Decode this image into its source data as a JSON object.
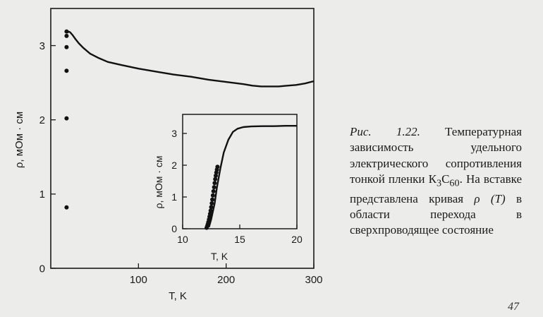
{
  "chart_data": [
    {
      "type": "line",
      "title": "",
      "xlabel": "T, K",
      "ylabel": "ρ, мОм · см",
      "xlim": [
        0,
        300
      ],
      "ylim": [
        0,
        3.5
      ],
      "xticks": [
        100,
        200,
        300
      ],
      "yticks": [
        0,
        1,
        2,
        3
      ],
      "series": [
        {
          "style": "line",
          "x": [
            19,
            20,
            22,
            25,
            28,
            32,
            37,
            45,
            55,
            65,
            80,
            100,
            120,
            140,
            160,
            180,
            200,
            220,
            230,
            240,
            250,
            260,
            270,
            280,
            290,
            300
          ],
          "y": [
            3.17,
            3.19,
            3.18,
            3.14,
            3.09,
            3.03,
            2.97,
            2.89,
            2.83,
            2.78,
            2.74,
            2.69,
            2.65,
            2.61,
            2.58,
            2.54,
            2.51,
            2.48,
            2.46,
            2.45,
            2.45,
            2.45,
            2.46,
            2.47,
            2.49,
            2.52
          ]
        },
        {
          "style": "points",
          "x": [
            18,
            18,
            18,
            18,
            18,
            18
          ],
          "y": [
            3.19,
            3.13,
            2.98,
            2.66,
            2.02,
            0.82
          ]
        }
      ]
    },
    {
      "type": "line",
      "title": "",
      "xlabel": "T, K",
      "ylabel": "ρ, мОм · см",
      "xlim": [
        10,
        20
      ],
      "ylim": [
        0,
        3.6
      ],
      "xticks": [
        10,
        15,
        20
      ],
      "yticks": [
        0,
        1,
        2,
        3
      ],
      "series": [
        {
          "style": "line",
          "x": [
            12.3,
            12.5,
            12.8,
            13.0,
            13.3,
            13.6,
            14.0,
            14.4,
            14.8,
            15.3,
            16.0,
            17.0,
            18.0,
            19.0,
            20.0
          ],
          "y": [
            0.05,
            0.3,
            0.8,
            1.3,
            1.9,
            2.4,
            2.8,
            3.05,
            3.15,
            3.2,
            3.22,
            3.23,
            3.23,
            3.24,
            3.24
          ]
        },
        {
          "style": "points",
          "x": [
            12.1,
            12.15,
            12.2,
            12.25,
            12.3,
            12.35,
            12.4,
            12.45,
            12.5,
            12.55,
            12.6,
            12.65,
            12.7,
            12.75,
            12.8,
            12.85,
            12.9,
            12.95,
            13.0,
            13.05
          ],
          "y": [
            0.03,
            0.08,
            0.14,
            0.21,
            0.29,
            0.38,
            0.47,
            0.57,
            0.68,
            0.8,
            0.92,
            1.05,
            1.18,
            1.31,
            1.44,
            1.56,
            1.67,
            1.77,
            1.86,
            1.95
          ]
        }
      ]
    }
  ],
  "caption": {
    "figure_label": "Рис. 1.22.",
    "text_part1": " Температурная зависимость удельного электрического сопротивления тонкой пленки К",
    "sub1": "3",
    "text_part2": "С",
    "sub2": "60",
    "text_part3": ". На вставке представлена кривая ",
    "curve_symbol": "ρ (T)",
    "text_part4": " в области перехода в сверхпроводящее состояние"
  },
  "page_number": "47"
}
